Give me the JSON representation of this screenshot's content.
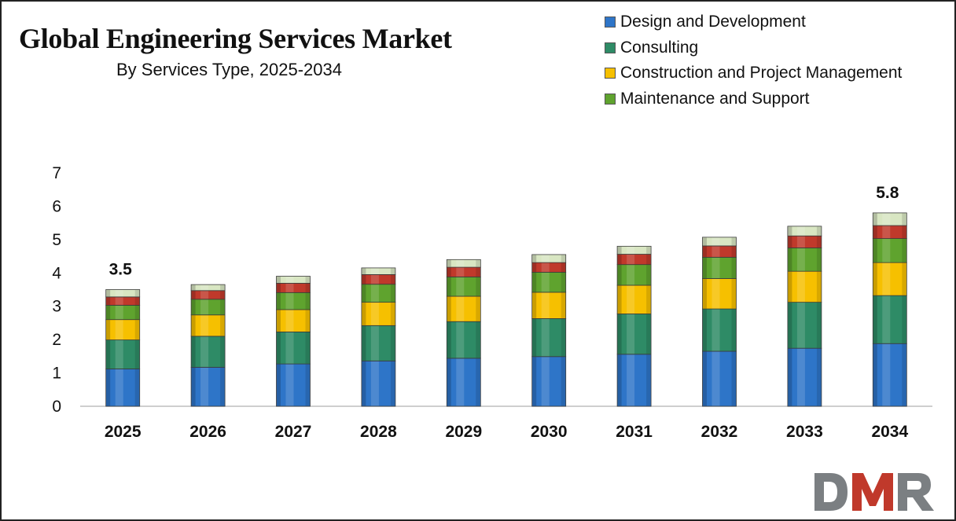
{
  "chart_data": {
    "type": "bar",
    "stacked": true,
    "title": "Global Engineering Services Market",
    "subtitle": "By Services Type, 2025-2034",
    "xlabel": "",
    "ylabel": "",
    "ylim": [
      0,
      7
    ],
    "yticks": [
      0,
      1,
      2,
      3,
      4,
      5,
      6,
      7
    ],
    "grid": false,
    "legend_position": "top-right",
    "categories": [
      "2025",
      "2026",
      "2027",
      "2028",
      "2029",
      "2030",
      "2031",
      "2032",
      "2033",
      "2034"
    ],
    "series": [
      {
        "name": "Design and Development",
        "color": "#2E75C8",
        "values": [
          1.12,
          1.17,
          1.27,
          1.36,
          1.44,
          1.49,
          1.56,
          1.65,
          1.74,
          1.88
        ]
      },
      {
        "name": "Consulting",
        "color": "#2E8B66",
        "values": [
          0.87,
          0.93,
          0.96,
          1.06,
          1.1,
          1.14,
          1.21,
          1.27,
          1.38,
          1.44
        ]
      },
      {
        "name": "Construction and Project Management",
        "color": "#F6C000",
        "values": [
          0.61,
          0.64,
          0.67,
          0.7,
          0.76,
          0.79,
          0.86,
          0.91,
          0.93,
          0.99
        ]
      },
      {
        "name": "Maintenance and Support",
        "color": "#5FA32E",
        "values": [
          0.43,
          0.47,
          0.51,
          0.54,
          0.58,
          0.6,
          0.62,
          0.64,
          0.7,
          0.72
        ]
      },
      {
        "name": "",
        "color": "#C0392B",
        "values": [
          0.25,
          0.26,
          0.28,
          0.29,
          0.29,
          0.29,
          0.31,
          0.34,
          0.36,
          0.39
        ]
      },
      {
        "name": "",
        "color": "#D8E6C2",
        "values": [
          0.22,
          0.18,
          0.21,
          0.2,
          0.23,
          0.24,
          0.24,
          0.26,
          0.29,
          0.38
        ]
      }
    ],
    "annotations": [
      {
        "category": "2025",
        "text": "3.5"
      },
      {
        "category": "2034",
        "text": "5.8"
      }
    ]
  },
  "logo": {
    "text": "DMR"
  }
}
